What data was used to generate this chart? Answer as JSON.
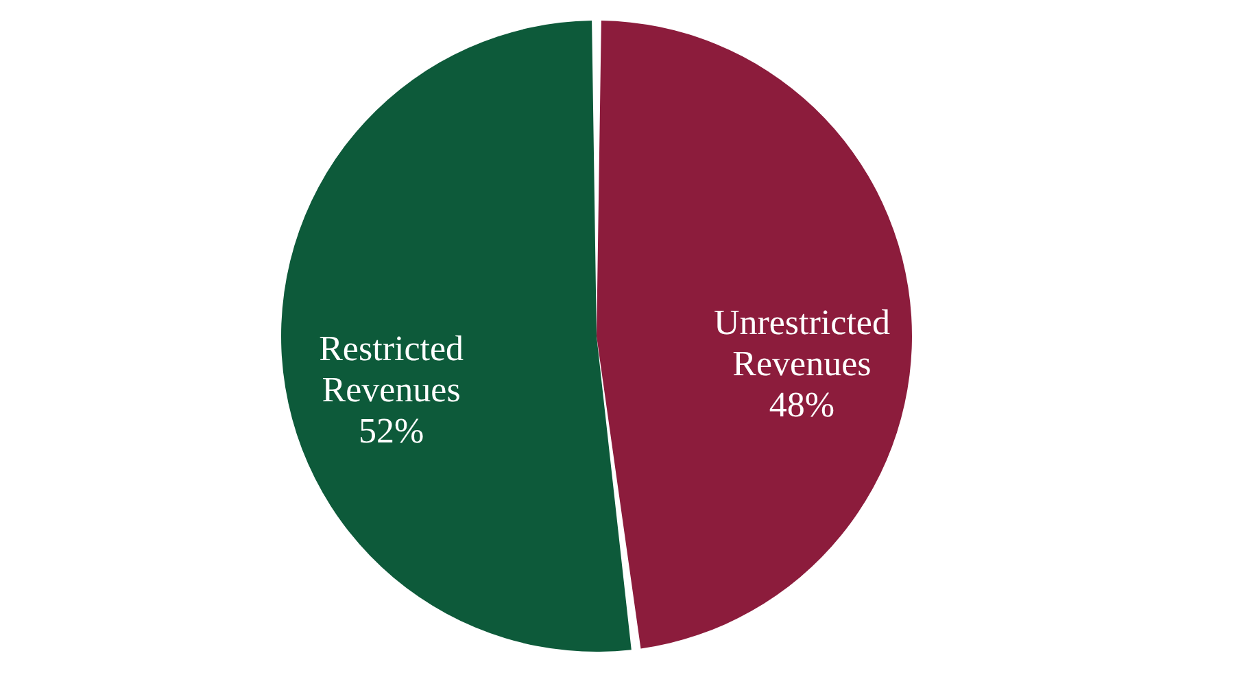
{
  "chart_data": {
    "type": "pie",
    "categories": [
      "Restricted Revenues",
      "Unrestricted Revenues"
    ],
    "values": [
      52,
      48
    ],
    "colors": [
      "#0d5a3a",
      "#8c1c3c"
    ],
    "value_labels": [
      "52%",
      "48%"
    ],
    "legend": false
  }
}
